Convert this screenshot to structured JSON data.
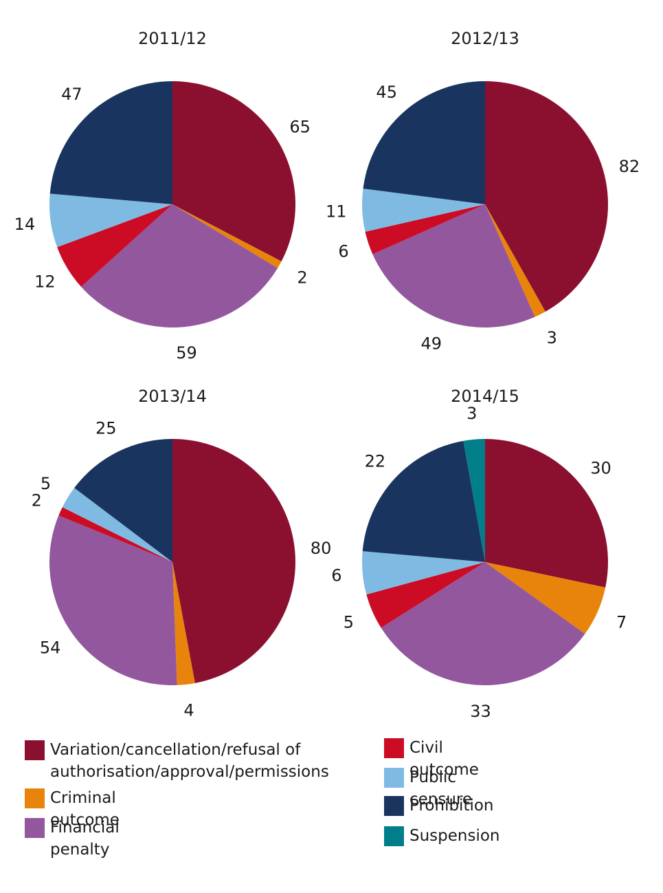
{
  "chart_data": [
    {
      "type": "pie",
      "title": "2011/12",
      "categories": [
        "Variation/cancellation/refusal of authorisation/approval/permissions",
        "Criminal outcome",
        "Financial penalty",
        "Civil outcome",
        "Public censure",
        "Prohibition"
      ],
      "values": [
        65,
        2,
        59,
        12,
        14,
        47
      ]
    },
    {
      "type": "pie",
      "title": "2012/13",
      "categories": [
        "Variation/cancellation/refusal of authorisation/approval/permissions",
        "Criminal outcome",
        "Financial penalty",
        "Civil outcome",
        "Public censure",
        "Prohibition"
      ],
      "values": [
        82,
        3,
        49,
        6,
        11,
        45
      ]
    },
    {
      "type": "pie",
      "title": "2013/14",
      "categories": [
        "Variation/cancellation/refusal of authorisation/approval/permissions",
        "Criminal outcome",
        "Financial penalty",
        "Civil outcome",
        "Public censure",
        "Prohibition"
      ],
      "values": [
        80,
        4,
        54,
        2,
        5,
        25
      ]
    },
    {
      "type": "pie",
      "title": "2014/15",
      "categories": [
        "Variation/cancellation/refusal of authorisation/approval/permissions",
        "Criminal outcome",
        "Financial penalty",
        "Civil outcome",
        "Public censure",
        "Prohibition",
        "Suspension"
      ],
      "values": [
        30,
        7,
        33,
        5,
        6,
        22,
        3
      ]
    }
  ],
  "legend": [
    {
      "key": "variation",
      "label": "Variation/cancellation/refusal of\nauthorisation/approval/permissions",
      "color": "#8b1030"
    },
    {
      "key": "criminal",
      "label": "Criminal outcome",
      "color": "#e8840b"
    },
    {
      "key": "financial",
      "label": "Financial penalty",
      "color": "#93579e"
    },
    {
      "key": "civil",
      "label": "Civil outcome",
      "color": "#cc0c25"
    },
    {
      "key": "censure",
      "label": "Public censure",
      "color": "#7fbae3"
    },
    {
      "key": "prohibition",
      "label": "Prohibition",
      "color": "#1a3460"
    },
    {
      "key": "suspension",
      "label": "Suspension",
      "color": "#027e8a"
    }
  ]
}
